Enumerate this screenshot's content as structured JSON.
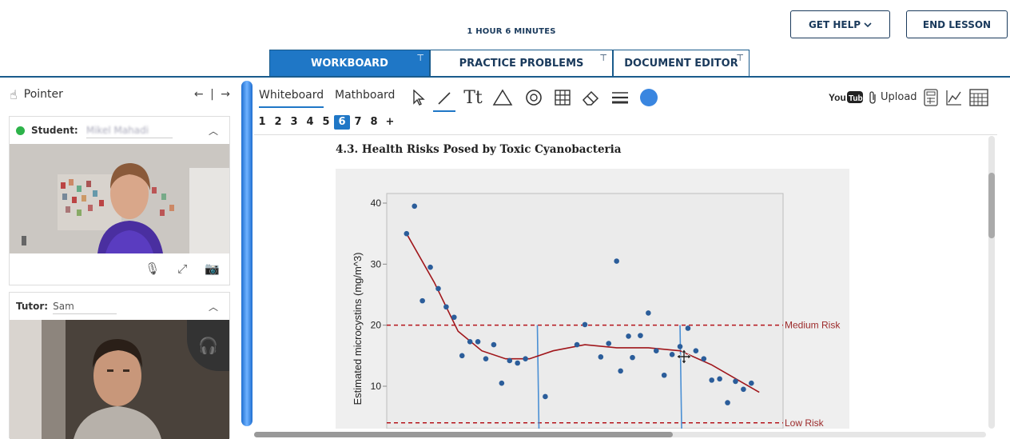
{
  "header": {
    "timer": "1 HOUR 6 MINUTES",
    "get_help_label": "GET HELP",
    "end_lesson_label": "END LESSON"
  },
  "tabs": [
    {
      "label": "WORKBOARD",
      "active": true
    },
    {
      "label": "PRACTICE PROBLEMS",
      "active": false
    },
    {
      "label": "DOCUMENT EDITOR",
      "active": false
    }
  ],
  "left_panel": {
    "pointer_label": "Pointer",
    "nav_text": "← | →",
    "student": {
      "label": "Student:",
      "name": "Mikel Mahadi"
    },
    "tutor": {
      "label": "Tutor:",
      "name": "Sam"
    }
  },
  "whiteboard": {
    "tabs": [
      "Whiteboard",
      "Mathboard"
    ],
    "upload_label": "Upload",
    "pages": [
      "1",
      "2",
      "3",
      "4",
      "5",
      "6",
      "7",
      "8",
      "+"
    ],
    "active_page": "6",
    "accent_color": "#1f77c6",
    "color_swatch": "#3a86e0"
  },
  "document": {
    "title": "4.3. Health Risks Posed by Toxic Cyanobacteria"
  },
  "chart_data": {
    "type": "scatter",
    "ylabel": "Estimated microcystins (mg/m^3)",
    "yticks": [
      10,
      20,
      30,
      40
    ],
    "ylim": [
      5,
      42
    ],
    "xlim": [
      0,
      100
    ],
    "thresholds": [
      {
        "label": "Medium Risk",
        "y": 20
      },
      {
        "label": "Low Risk",
        "y": 4
      }
    ],
    "vertical_lines_x": [
      38,
      74
    ],
    "points": [
      [
        5,
        35
      ],
      [
        7,
        39.5
      ],
      [
        9,
        24
      ],
      [
        11,
        29.5
      ],
      [
        13,
        26
      ],
      [
        15,
        23
      ],
      [
        17,
        21.3
      ],
      [
        19,
        15
      ],
      [
        21,
        17.3
      ],
      [
        23,
        17.3
      ],
      [
        25,
        14.5
      ],
      [
        27,
        16.8
      ],
      [
        29,
        10.5
      ],
      [
        31,
        14.2
      ],
      [
        33,
        13.8
      ],
      [
        35,
        14.5
      ],
      [
        40,
        8.3
      ],
      [
        48,
        16.8
      ],
      [
        50,
        20.1
      ],
      [
        54,
        14.8
      ],
      [
        56,
        17
      ],
      [
        58,
        30.5
      ],
      [
        59,
        12.5
      ],
      [
        61,
        18.2
      ],
      [
        62,
        14.7
      ],
      [
        64,
        18.3
      ],
      [
        66,
        22
      ],
      [
        68,
        15.8
      ],
      [
        70,
        11.8
      ],
      [
        72,
        15.2
      ],
      [
        74,
        16.5
      ],
      [
        76,
        19.5
      ],
      [
        78,
        15.8
      ],
      [
        80,
        14.5
      ],
      [
        82,
        11
      ],
      [
        84,
        11.2
      ],
      [
        86,
        7.3
      ],
      [
        88,
        10.8
      ],
      [
        90,
        9.5
      ],
      [
        92,
        10.5
      ]
    ],
    "trend": [
      [
        5,
        35
      ],
      [
        12,
        27
      ],
      [
        18,
        19
      ],
      [
        24,
        15.8
      ],
      [
        30,
        14.5
      ],
      [
        36,
        14.5
      ],
      [
        42,
        15.8
      ],
      [
        50,
        16.8
      ],
      [
        58,
        16.3
      ],
      [
        66,
        16.3
      ],
      [
        74,
        15.8
      ],
      [
        82,
        13.5
      ],
      [
        90,
        10.5
      ],
      [
        94,
        9
      ]
    ]
  }
}
